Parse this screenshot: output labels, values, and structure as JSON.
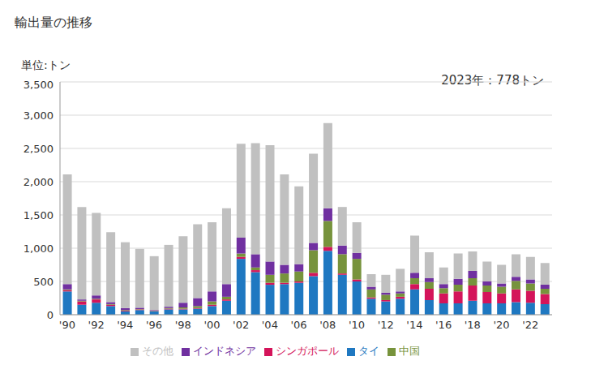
{
  "chart_data": {
    "type": "bar",
    "title": "輸出量の推移",
    "y_label": "単位:トン",
    "annotation": "2023年：778トン",
    "stacked": true,
    "grid": true,
    "legend": "bottom",
    "categories": [
      "'90",
      null,
      "'92",
      null,
      "'94",
      null,
      "'96",
      null,
      "'98",
      null,
      "'00",
      null,
      "'02",
      null,
      "'04",
      null,
      "'06",
      null,
      "'08",
      null,
      "'10",
      null,
      "'12",
      null,
      "'14",
      null,
      "'16",
      null,
      "'18",
      null,
      "'20",
      null,
      "'22",
      null
    ],
    "ylim": [
      0,
      3500
    ],
    "yticks": [
      0,
      500,
      {
        "value": 1000,
        "label": "1,000"
      },
      {
        "value": 1500,
        "label": "1,500"
      },
      {
        "value": 2000,
        "label": "2,000"
      },
      {
        "value": 2500,
        "label": "2,500"
      },
      {
        "value": 3000,
        "label": "3,000"
      },
      {
        "value": 3500,
        "label": "3,500"
      }
    ],
    "series": [
      {
        "name": "タイ",
        "color": "#1f78c1",
        "values": [
          350,
          150,
          180,
          130,
          50,
          70,
          50,
          80,
          80,
          90,
          130,
          210,
          840,
          640,
          450,
          460,
          480,
          580,
          960,
          600,
          500,
          240,
          200,
          240,
          380,
          220,
          170,
          170,
          210,
          170,
          170,
          190,
          180,
          160
        ]
      },
      {
        "name": "シンガポール",
        "color": "#d4145a",
        "values": [
          20,
          50,
          50,
          20,
          10,
          10,
          5,
          10,
          10,
          10,
          20,
          20,
          30,
          30,
          30,
          20,
          20,
          50,
          60,
          20,
          30,
          20,
          20,
          30,
          80,
          170,
          150,
          180,
          230,
          170,
          150,
          190,
          180,
          150
        ]
      },
      {
        "name": "中国",
        "color": "#77933c",
        "values": [
          10,
          10,
          10,
          10,
          10,
          5,
          5,
          10,
          20,
          30,
          50,
          40,
          50,
          40,
          120,
          140,
          150,
          340,
          390,
          290,
          310,
          120,
          80,
          50,
          90,
          100,
          80,
          100,
          110,
          100,
          100,
          130,
          110,
          80
        ]
      },
      {
        "name": "インドネシア",
        "color": "#7030a0",
        "values": [
          80,
          20,
          50,
          30,
          30,
          20,
          10,
          20,
          70,
          120,
          150,
          190,
          240,
          200,
          200,
          130,
          110,
          110,
          190,
          130,
          90,
          40,
          30,
          30,
          80,
          60,
          60,
          90,
          110,
          60,
          50,
          60,
          60,
          60
        ]
      },
      {
        "name": "その他",
        "color": "#c0c0c0",
        "values": [
          1650,
          1390,
          1240,
          1050,
          990,
          885,
          810,
          930,
          1000,
          1110,
          1040,
          1140,
          1410,
          1670,
          1750,
          1360,
          1170,
          1340,
          1280,
          580,
          460,
          190,
          270,
          340,
          560,
          390,
          250,
          380,
          290,
          300,
          280,
          340,
          340,
          328
        ]
      }
    ]
  }
}
